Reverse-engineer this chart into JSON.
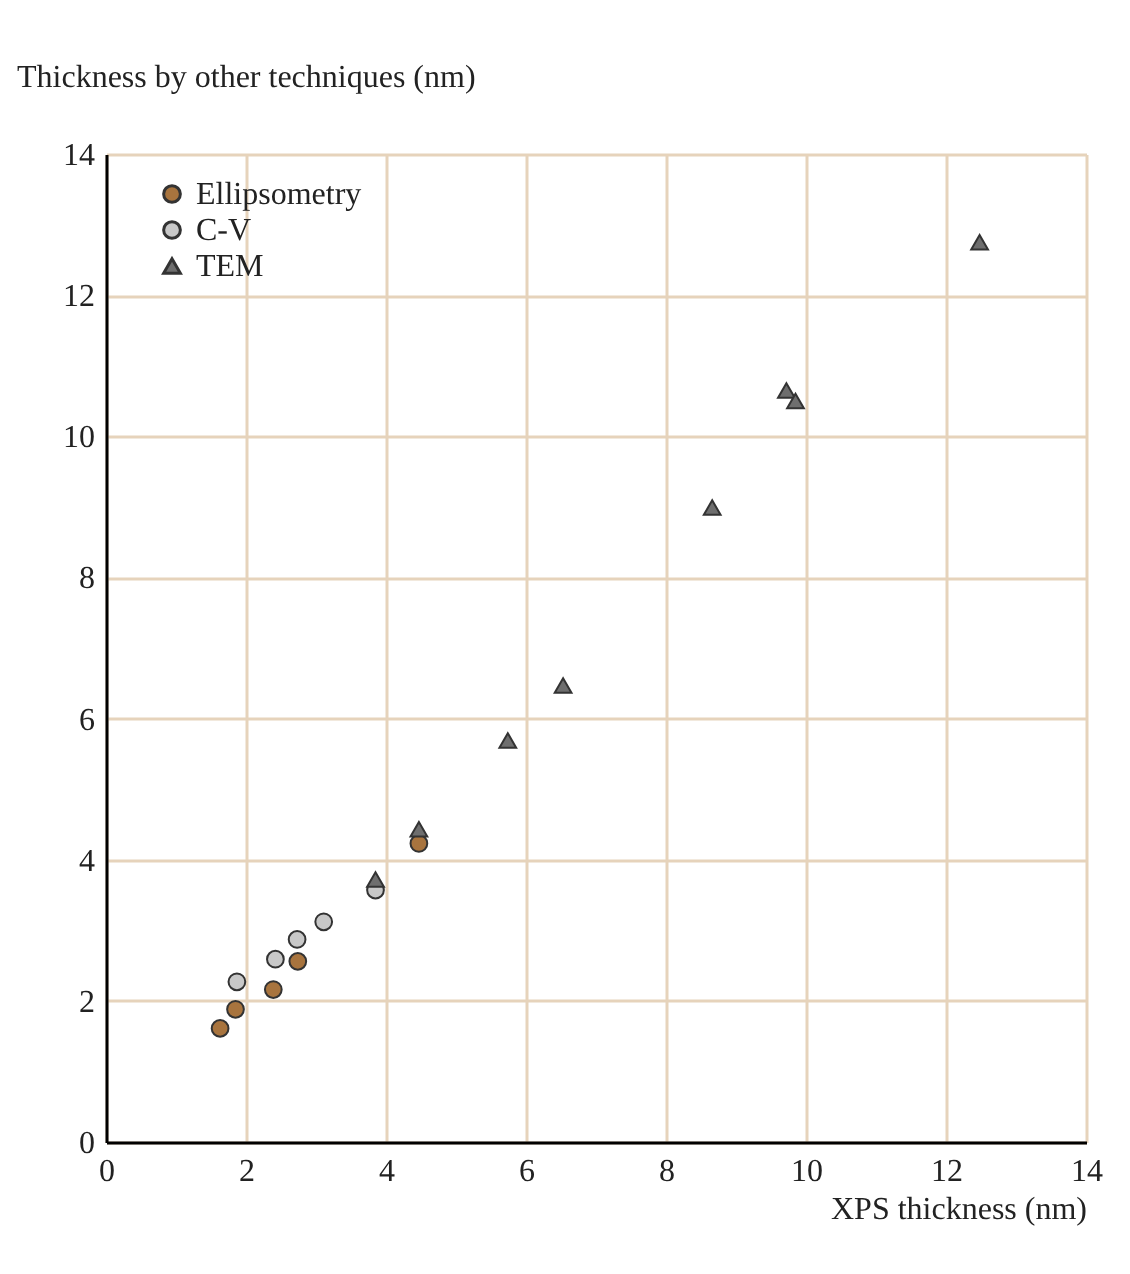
{
  "chart_data": {
    "type": "scatter",
    "xlabel": "XPS thickness (nm)",
    "ylabel": "Thickness by other techniques (nm)",
    "xlim": [
      0,
      14
    ],
    "xticks": [
      0,
      2,
      4,
      6,
      8,
      10,
      12,
      14
    ],
    "ylim": [
      0,
      14
    ],
    "yticks": [
      0,
      2,
      4,
      6,
      8,
      10,
      12,
      14
    ],
    "grid": true,
    "legend": "top left",
    "series": [
      {
        "name": "Ellipsometry",
        "color": "#a8743e",
        "marker": "circle",
        "x": [
          1.63,
          1.85,
          2.39,
          2.74,
          4.47
        ],
        "values": [
          1.61,
          1.88,
          2.16,
          2.56,
          4.23
        ]
      },
      {
        "name": "C-V",
        "color": "#c8c8c8",
        "marker": "circle",
        "x": [
          1.87,
          2.42,
          2.73,
          3.11,
          3.85
        ],
        "values": [
          2.27,
          2.59,
          2.87,
          3.12,
          3.57
        ]
      },
      {
        "name": "TEM",
        "color": "#6e6e6e",
        "marker": "triangle",
        "x": [
          3.85,
          4.47,
          5.74,
          6.53,
          8.66,
          9.72,
          9.85,
          12.48
        ],
        "values": [
          3.72,
          4.43,
          5.69,
          6.47,
          8.99,
          10.65,
          10.5,
          12.75
        ]
      }
    ]
  }
}
